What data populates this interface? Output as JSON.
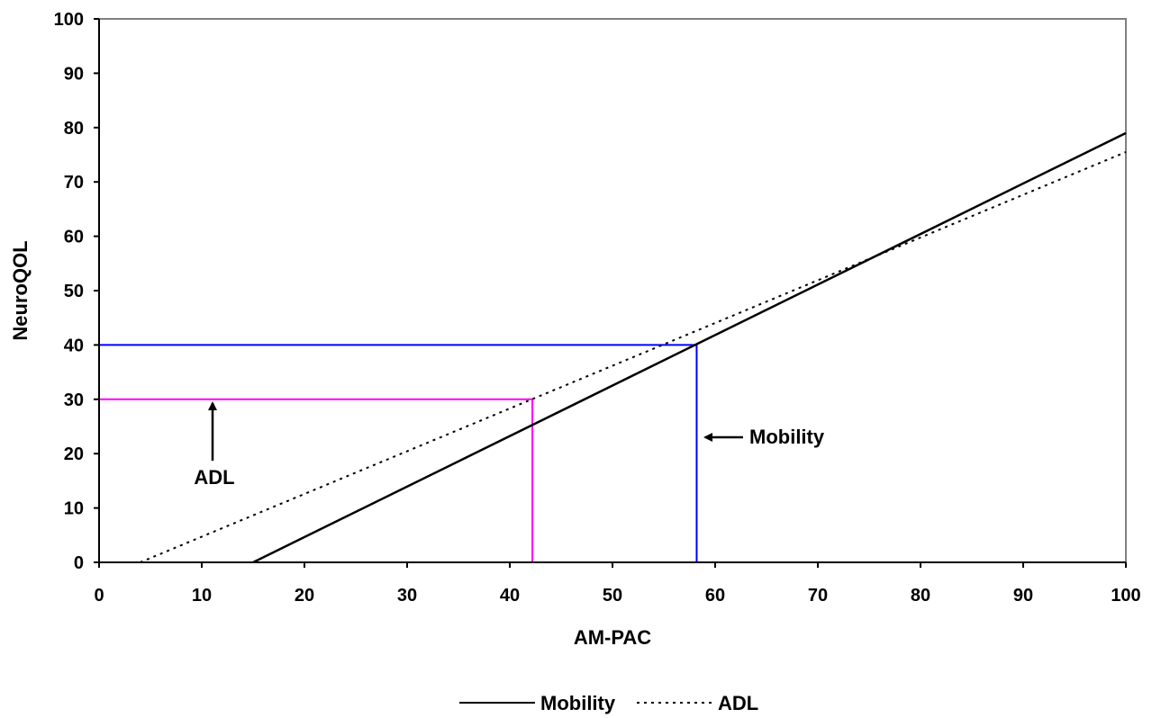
{
  "chart_data": {
    "type": "line",
    "xlabel": "AM-PAC",
    "ylabel": "NeuroQOL",
    "xlim": [
      0,
      100
    ],
    "ylim": [
      0,
      100
    ],
    "xticks": [
      0,
      10,
      20,
      30,
      40,
      50,
      60,
      70,
      80,
      90,
      100
    ],
    "yticks": [
      0,
      10,
      20,
      30,
      40,
      50,
      60,
      70,
      80,
      90,
      100
    ],
    "grid": false,
    "legend_position": "bottom",
    "series": [
      {
        "name": "Mobility",
        "style": "solid",
        "color": "#000000",
        "x": [
          15,
          100
        ],
        "y": [
          0,
          79
        ]
      },
      {
        "name": "ADL",
        "style": "dotted",
        "color": "#000000",
        "x": [
          4,
          100
        ],
        "y": [
          0,
          75.5
        ]
      }
    ],
    "reference_lines": [
      {
        "color": "#0000ff",
        "x": [
          0,
          58.2,
          58.2
        ],
        "y": [
          40,
          40,
          0
        ]
      },
      {
        "color": "#ff00ff",
        "x": [
          0,
          42.2,
          42.2
        ],
        "y": [
          30,
          30,
          0
        ]
      }
    ],
    "annotations": [
      {
        "text": "ADL",
        "arrow": "up",
        "x": 11,
        "y": 30
      },
      {
        "text": "Mobility",
        "arrow": "left",
        "x": 59,
        "y": 23
      }
    ]
  }
}
